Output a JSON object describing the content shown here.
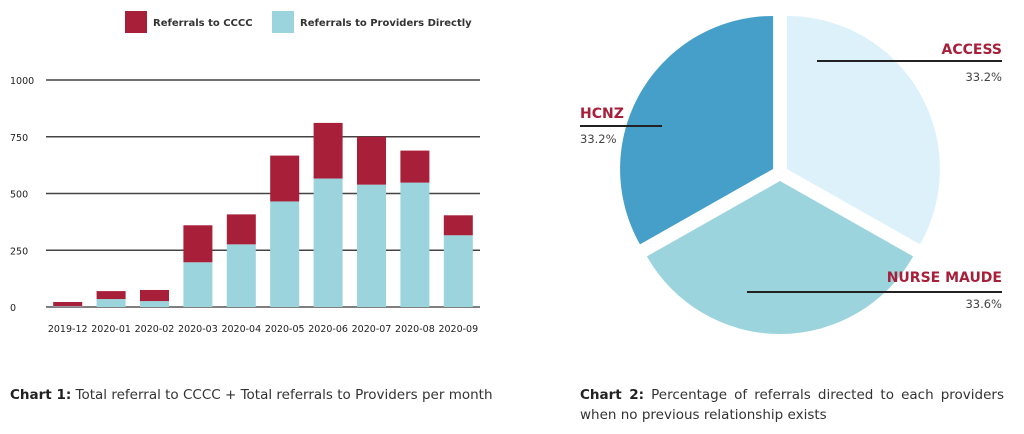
{
  "chart_data": [
    {
      "type": "bar",
      "stacked": true,
      "title": "",
      "xlabel": "",
      "ylabel": "",
      "ylim": [
        0,
        1000
      ],
      "yticks": [
        0,
        250,
        500,
        750,
        1000
      ],
      "grid": true,
      "legend_position": "top",
      "categories": [
        "2019-12",
        "2020-01",
        "2020-02",
        "2020-03",
        "2020-04",
        "2020-05",
        "2020-06",
        "2020-07",
        "2020-08",
        "2020-09"
      ],
      "series": [
        {
          "name": "Referrals to Providers Directly",
          "color": "#9bd4dc",
          "values": [
            3,
            35,
            26,
            197,
            276,
            465,
            566,
            539,
            548,
            316
          ]
        },
        {
          "name": "Referrals to CCCC",
          "color": "#a81f3a",
          "values": [
            19,
            35,
            49,
            163,
            132,
            202,
            245,
            211,
            141,
            88
          ]
        }
      ],
      "caption_bold": "Chart 1:",
      "caption_text": " Total referral to CCCC + Total referrals to Providers per month"
    },
    {
      "type": "pie",
      "title": "",
      "slices": [
        {
          "label": "ACCESS",
          "value": 33.2,
          "pct_label": "33.2%",
          "color": "#ddf1fa"
        },
        {
          "label": "NURSE MAUDE",
          "value": 33.6,
          "pct_label": "33.6%",
          "color": "#9bd4dc"
        },
        {
          "label": "HCNZ",
          "value": 33.2,
          "pct_label": "33.2%",
          "color": "#459fc8"
        }
      ],
      "caption_bold": "Chart 2:",
      "caption_text": " Percentage of referrals directed to each providers when no previous relationship exists"
    }
  ]
}
